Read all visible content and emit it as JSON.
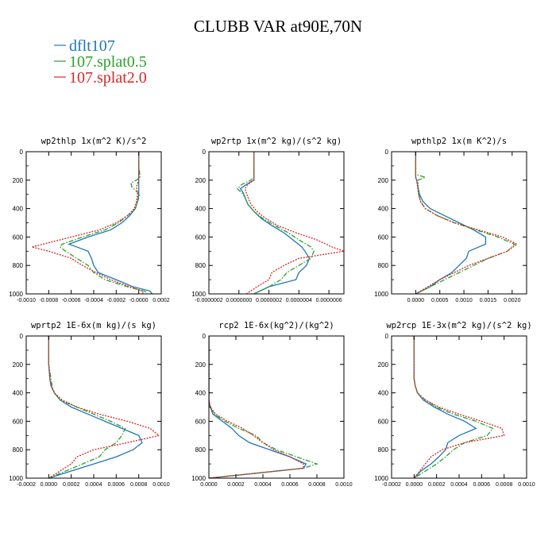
{
  "chart_data": {
    "title": "CLUBB VAR at90E,70N",
    "legend": [
      {
        "label": "dflt107",
        "color": "#1f77b4",
        "dash": "solid"
      },
      {
        "label": "107.splat0.5",
        "color": "#2ca02c",
        "dash": "dashdot"
      },
      {
        "label": "107.splat2.0",
        "color": "#d62728",
        "dash": "dotted"
      }
    ],
    "panels": [
      {
        "type": "line",
        "title": "wp2thlp  1x(m^2 K)/s^2",
        "xlim": [
          -0.001,
          0.0002
        ],
        "xticks": [
          -0.001,
          -0.0008,
          -0.0006,
          -0.0004,
          -0.0002,
          0.0,
          0.0002
        ],
        "xtick_labels": [
          "-0.0010",
          "-0.0008",
          "-0.0006",
          "-0.0004",
          "-0.0002",
          "-0.0000",
          "0.0002"
        ],
        "ylim": [
          0,
          1000
        ],
        "yticks": [
          0,
          200,
          400,
          600,
          800,
          1000
        ],
        "y_inverted": true,
        "y": [
          0,
          100,
          160,
          180,
          200,
          220,
          250,
          300,
          350,
          400,
          450,
          500,
          550,
          600,
          650,
          670,
          700,
          750,
          800,
          850,
          900,
          950,
          980,
          1000
        ],
        "series": [
          {
            "name": "dflt107",
            "x": [
              0.0,
              0.0,
              0.0,
              0.0,
              0.0,
              0.0,
              0.0,
              0.0,
              -1e-05,
              -3e-05,
              -8e-05,
              -0.00015,
              -0.00025,
              -0.00045,
              -0.00062,
              -0.00055,
              -0.00045,
              -0.00042,
              -0.0004,
              -0.00036,
              -0.0002,
              -5e-05,
              0.0001,
              0.00012
            ]
          },
          {
            "name": "107.splat0.5",
            "x": [
              0.0,
              0.0,
              1e-05,
              1e-05,
              -2e-05,
              -7e-05,
              -6e-05,
              1e-05,
              -1e-05,
              -3e-05,
              -0.0001,
              -0.00018,
              -0.0003,
              -0.0005,
              -0.00068,
              -0.0007,
              -0.00065,
              -0.00055,
              -0.00045,
              -0.0004,
              -0.0003,
              -0.0001,
              5e-05,
              8e-05
            ]
          },
          {
            "name": "107.splat2.0",
            "x": [
              0.0,
              0.0,
              0.0,
              0.0,
              0.0,
              -1e-05,
              -2e-05,
              -1e-05,
              -2e-05,
              -4e-05,
              -0.0001,
              -0.0002,
              -0.00035,
              -0.0006,
              -0.00085,
              -0.00095,
              -0.0008,
              -0.0006,
              -0.0005,
              -0.00038,
              -0.00025,
              -8e-05,
              3e-05,
              4e-05
            ]
          }
        ]
      },
      {
        "type": "line",
        "title": "wp2rtp  1x(m^2 kg)/(s^2 kg)",
        "xlim": [
          -2e-07,
          7e-07
        ],
        "xticks": [
          -2e-07,
          0.0,
          2e-07,
          4e-07,
          6e-07
        ],
        "xtick_labels": [
          "-0.0000002",
          "0.0000000",
          "0.0000002",
          "0.0000004",
          "0.0000006"
        ],
        "ylim": [
          0,
          1000
        ],
        "yticks": [
          0,
          200,
          400,
          600,
          800,
          1000
        ],
        "y_inverted": true,
        "y": [
          0,
          100,
          180,
          200,
          230,
          260,
          290,
          320,
          370,
          420,
          470,
          520,
          570,
          620,
          670,
          700,
          750,
          800,
          850,
          900,
          950,
          1000
        ],
        "series": [
          {
            "name": "dflt107",
            "x": [
              1e-07,
              1e-07,
              1e-07,
              1e-07,
              5e-08,
              1e-08,
              3e-08,
              4e-08,
              6e-08,
              1e-07,
              1.5e-07,
              2.2e-07,
              3e-07,
              3.6e-07,
              4.2e-07,
              4.4e-07,
              4.7e-07,
              4.5e-07,
              4e-07,
              3.8e-07,
              2e-07,
              1e-07
            ]
          },
          {
            "name": "107.splat0.5",
            "x": [
              1e-07,
              1e-07,
              1e-07,
              8e-08,
              2e-08,
              -1e-08,
              2e-08,
              4e-08,
              6e-08,
              1e-07,
              1.6e-07,
              2.4e-07,
              3.3e-07,
              4e-07,
              4.8e-07,
              5e-07,
              4.8e-07,
              4e-07,
              3.2e-07,
              2.8e-07,
              2e-07,
              1e-07
            ]
          },
          {
            "name": "107.splat2.0",
            "x": [
              1e-07,
              1e-07,
              1e-07,
              1e-07,
              6e-08,
              4e-08,
              5e-08,
              6e-08,
              8e-08,
              1.2e-07,
              1.8e-07,
              2.6e-07,
              3.8e-07,
              5.2e-07,
              6.2e-07,
              7e-07,
              4e-07,
              3e-07,
              2.2e-07,
              2e-07,
              1.2e-07,
              5e-08
            ]
          }
        ]
      },
      {
        "type": "line",
        "title": "wpthlp2  1x(m K^2)/s",
        "xlim": [
          -0.0005,
          0.0023
        ],
        "xticks": [
          0.0,
          0.0005,
          0.001,
          0.0015,
          0.002
        ],
        "xtick_labels": [
          "0.0000",
          "0.0005",
          "0.0010",
          "0.0015",
          "0.0020"
        ],
        "ylim": [
          0,
          1000
        ],
        "yticks": [
          0,
          200,
          400,
          600,
          800,
          1000
        ],
        "y_inverted": true,
        "y": [
          0,
          100,
          160,
          180,
          200,
          250,
          300,
          350,
          400,
          450,
          500,
          550,
          600,
          650,
          700,
          750,
          800,
          850,
          900,
          950,
          1000
        ],
        "series": [
          {
            "name": "dflt107",
            "x": [
              0.0,
              0.0,
              0.0,
              0.0,
              2e-05,
              5e-05,
              8e-05,
              0.00015,
              0.0003,
              0.0006,
              0.0009,
              0.0012,
              0.00145,
              0.00145,
              0.0011,
              0.00105,
              0.0009,
              0.00075,
              0.0005,
              0.0003,
              0.0
            ]
          },
          {
            "name": "107.splat0.5",
            "x": [
              0.0,
              0.0,
              0.0,
              0.0002,
              5e-05,
              5e-05,
              6e-05,
              0.0001,
              0.0002,
              0.00045,
              0.0008,
              0.00125,
              0.0017,
              0.00205,
              0.0019,
              0.0015,
              0.0012,
              0.0009,
              0.0006,
              0.0003,
              0.0
            ]
          },
          {
            "name": "107.splat2.0",
            "x": [
              0.0,
              0.0,
              0.0,
              0.0,
              2e-05,
              4e-05,
              6e-05,
              0.0001,
              0.0002,
              0.00045,
              0.0008,
              0.0013,
              0.0018,
              0.0021,
              0.0019,
              0.0015,
              0.0011,
              0.0008,
              0.0005,
              0.00025,
              0.0
            ]
          }
        ]
      },
      {
        "type": "line",
        "title": "wprtp2  1E-6x(m kg)/(s kg)",
        "xlim": [
          -0.0002,
          0.001
        ],
        "xticks": [
          -0.0002,
          0.0,
          0.0002,
          0.0004,
          0.0006,
          0.0008,
          0.001
        ],
        "xtick_labels": [
          "-0.0002",
          "0.0000",
          "0.0002",
          "0.0004",
          "0.0006",
          "0.0008",
          "0.0010"
        ],
        "ylim": [
          0,
          1000
        ],
        "yticks": [
          0,
          200,
          400,
          600,
          800,
          1000
        ],
        "y_inverted": true,
        "y": [
          0,
          100,
          200,
          300,
          350,
          400,
          450,
          500,
          550,
          600,
          650,
          700,
          750,
          800,
          850,
          900,
          950,
          1000
        ],
        "series": [
          {
            "name": "dflt107",
            "x": [
              0.0,
              0.0,
              0.0,
              1e-05,
              2e-05,
              5e-05,
              0.0001,
              0.0002,
              0.00035,
              0.0005,
              0.00065,
              0.0008,
              0.00083,
              0.00075,
              0.0006,
              0.0004,
              0.0002,
              0.0
            ]
          },
          {
            "name": "107.splat0.5",
            "x": [
              0.0,
              0.0,
              0.0,
              2e-05,
              3e-05,
              5e-05,
              0.0001,
              0.00025,
              0.0004,
              0.00055,
              0.00068,
              0.00065,
              0.0006,
              0.0005,
              0.00045,
              0.0003,
              0.00015,
              0.0
            ]
          },
          {
            "name": "107.splat2.0",
            "x": [
              0.0,
              0.0,
              0.0,
              1e-05,
              2e-05,
              5e-05,
              0.00012,
              0.00025,
              0.00045,
              0.0007,
              0.0009,
              0.00098,
              0.0007,
              0.0004,
              0.00025,
              0.0002,
              0.0001,
              0.0
            ]
          }
        ]
      },
      {
        "type": "line",
        "title": "rcp2  1E-6x(kg^2)/(kg^2)",
        "xlim": [
          0.0,
          0.001
        ],
        "xticks": [
          0.0,
          0.0002,
          0.0004,
          0.0006,
          0.0008,
          0.001
        ],
        "xtick_labels": [
          "0.0000",
          "0.0002",
          "0.0004",
          "0.0006",
          "0.0008",
          "0.0010"
        ],
        "ylim": [
          0,
          1000
        ],
        "yticks": [
          0,
          200,
          400,
          600,
          800,
          1000
        ],
        "y_inverted": true,
        "y": [
          0,
          100,
          200,
          300,
          400,
          450,
          500,
          550,
          600,
          650,
          700,
          750,
          800,
          850,
          900,
          930,
          960,
          990,
          1000
        ],
        "series": [
          {
            "name": "dflt107",
            "x": [
              0.0,
              0.0,
              0.0,
              0.0,
              0.0,
              0.0,
              1e-05,
              3e-05,
              0.0001,
              0.00017,
              0.00022,
              0.0003,
              0.00045,
              0.0006,
              0.00072,
              0.0007,
              0.0004,
              0.0001,
              0.0
            ]
          },
          {
            "name": "107.splat0.5",
            "x": [
              0.0,
              0.0,
              0.0,
              0.0,
              0.0,
              0.0,
              1e-05,
              4e-05,
              0.00012,
              0.00022,
              0.00035,
              0.0004,
              0.0005,
              0.00065,
              0.0008,
              0.0007,
              0.0004,
              0.0001,
              0.0
            ]
          },
          {
            "name": "107.splat2.0",
            "x": [
              0.0,
              0.0,
              0.0,
              0.0,
              0.0,
              0.0,
              1e-05,
              5e-05,
              0.00014,
              0.00025,
              0.00033,
              0.0004,
              0.00048,
              0.0006,
              0.0007,
              0.0007,
              0.0004,
              0.0001,
              0.0
            ]
          }
        ]
      },
      {
        "type": "line",
        "title": "wp2rcp  1E-3x(m^2 kg)/(s^2 kg)",
        "xlim": [
          -0.0002,
          0.001
        ],
        "xticks": [
          -0.0002,
          0.0,
          0.0002,
          0.0004,
          0.0006,
          0.0008,
          0.001
        ],
        "xtick_labels": [
          "-0.0002",
          "0.0000",
          "0.0002",
          "0.0004",
          "0.0006",
          "0.0008",
          "0.0010"
        ],
        "ylim": [
          0,
          1000
        ],
        "yticks": [
          0,
          200,
          400,
          600,
          800,
          1000
        ],
        "y_inverted": true,
        "y": [
          0,
          100,
          200,
          300,
          350,
          400,
          450,
          500,
          550,
          600,
          650,
          700,
          750,
          800,
          850,
          900,
          950,
          1000
        ],
        "series": [
          {
            "name": "dflt107",
            "x": [
              0.0,
              0.0,
              0.0,
              0.0,
              1e-05,
              3e-05,
              8e-05,
              0.00018,
              0.0003,
              0.00045,
              0.00055,
              0.0004,
              0.0003,
              0.00028,
              0.00022,
              0.00015,
              6e-05,
              0.0
            ]
          },
          {
            "name": "107.splat0.5",
            "x": [
              0.0,
              0.0,
              0.0,
              0.0,
              1e-05,
              3e-05,
              0.0001,
              0.0002,
              0.00035,
              0.00055,
              0.0007,
              0.00065,
              0.00045,
              0.00035,
              0.00028,
              0.0002,
              0.0001,
              0.0
            ]
          },
          {
            "name": "107.splat2.0",
            "x": [
              0.0,
              0.0,
              0.0,
              0.0,
              1e-05,
              3e-05,
              0.0001,
              0.00022,
              0.0004,
              0.0006,
              0.00078,
              0.0008,
              0.00045,
              0.00025,
              0.00015,
              0.0001,
              5e-05,
              0.0
            ]
          }
        ]
      }
    ]
  }
}
